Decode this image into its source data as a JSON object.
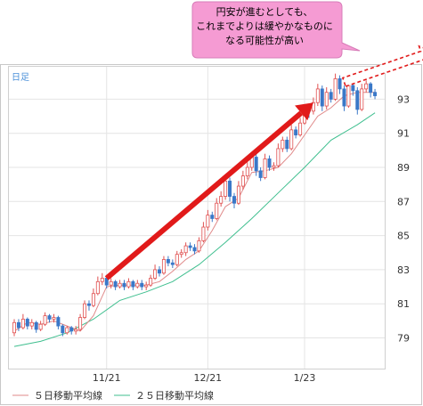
{
  "chart_data": {
    "type": "candlestick",
    "period_label": "日足",
    "x_tick_labels": [
      "11/21",
      "12/21",
      "1/23"
    ],
    "y_tick_labels": [
      "93",
      "91",
      "89",
      "87",
      "85",
      "83",
      "81",
      "79"
    ],
    "ylim": [
      77.2,
      94.9
    ],
    "legend": [
      {
        "name": "５日移動平均線",
        "color": "#e08a8a"
      },
      {
        "name": "２５日移動平均線",
        "color": "#3fbf8f"
      }
    ],
    "annotation": {
      "lines": [
        "円安が進むとしても、",
        "これまでよりは緩やかなものに",
        "なる可能性が高い"
      ],
      "background": "#f59bd3"
    },
    "trend_arrow": {
      "color": "#e11a1a",
      "from": [
        21,
        82.5
      ],
      "to": [
        68,
        92.8
      ]
    },
    "forecast_arrow": {
      "color": "#e11a1a",
      "from": [
        75,
        94.0
      ],
      "to": [
        93,
        95.8
      ]
    },
    "ma25": [
      [
        0,
        78.5
      ],
      [
        6,
        78.8
      ],
      [
        12,
        79.3
      ],
      [
        18,
        80.1
      ],
      [
        24,
        81.2
      ],
      [
        30,
        81.7
      ],
      [
        36,
        82.3
      ],
      [
        42,
        83.3
      ],
      [
        48,
        84.6
      ],
      [
        54,
        86.0
      ],
      [
        60,
        87.5
      ],
      [
        66,
        89.0
      ],
      [
        72,
        90.6
      ],
      [
        78,
        91.5
      ],
      [
        82,
        92.2
      ]
    ],
    "ma5": [
      [
        0,
        79.4
      ],
      [
        3,
        79.9
      ],
      [
        6,
        79.8
      ],
      [
        9,
        80.0
      ],
      [
        12,
        79.7
      ],
      [
        15,
        79.4
      ],
      [
        18,
        80.3
      ],
      [
        21,
        82.0
      ],
      [
        24,
        82.1
      ],
      [
        27,
        82.1
      ],
      [
        30,
        82.1
      ],
      [
        33,
        82.3
      ],
      [
        36,
        82.9
      ],
      [
        39,
        83.6
      ],
      [
        42,
        84.1
      ],
      [
        45,
        85.3
      ],
      [
        48,
        86.7
      ],
      [
        51,
        87.2
      ],
      [
        54,
        88.7
      ],
      [
        57,
        88.8
      ],
      [
        60,
        89.0
      ],
      [
        63,
        89.8
      ],
      [
        66,
        90.9
      ],
      [
        69,
        92.0
      ],
      [
        72,
        92.5
      ],
      [
        75,
        93.2
      ],
      [
        78,
        93.4
      ],
      [
        81,
        93.4
      ],
      [
        82,
        93.4
      ]
    ],
    "candles": [
      [
        0,
        79.3,
        79.9,
        80.1,
        79.1
      ],
      [
        1,
        79.9,
        79.6,
        80.1,
        79.4
      ],
      [
        2,
        79.6,
        80.1,
        80.4,
        79.5
      ],
      [
        3,
        80.1,
        79.7,
        80.2,
        79.5
      ],
      [
        4,
        79.7,
        79.9,
        80.1,
        79.5
      ],
      [
        5,
        79.9,
        79.5,
        80.0,
        79.3
      ],
      [
        6,
        79.5,
        79.8,
        80.0,
        79.4
      ],
      [
        7,
        79.8,
        80.3,
        80.5,
        79.7
      ],
      [
        8,
        80.3,
        80.1,
        80.4,
        79.9
      ],
      [
        9,
        80.1,
        80.2,
        80.4,
        79.9
      ],
      [
        10,
        80.2,
        79.7,
        80.3,
        79.5
      ],
      [
        11,
        79.7,
        79.3,
        79.8,
        79.1
      ],
      [
        12,
        79.3,
        79.6,
        79.7,
        79.2
      ],
      [
        13,
        79.6,
        79.4,
        79.7,
        79.2
      ],
      [
        14,
        79.4,
        79.5,
        79.7,
        79.2
      ],
      [
        15,
        79.5,
        80.2,
        80.4,
        79.4
      ],
      [
        16,
        80.2,
        81.0,
        81.2,
        80.1
      ],
      [
        17,
        81.0,
        80.9,
        81.2,
        80.6
      ],
      [
        18,
        80.9,
        81.6,
        81.9,
        80.8
      ],
      [
        19,
        81.6,
        82.3,
        82.6,
        81.5
      ],
      [
        20,
        82.3,
        82.5,
        82.8,
        82.1
      ],
      [
        21,
        82.5,
        82.1,
        82.7,
        81.9
      ],
      [
        22,
        82.1,
        82.3,
        82.5,
        81.9
      ],
      [
        23,
        82.3,
        82.0,
        82.4,
        81.8
      ],
      [
        24,
        82.0,
        82.2,
        82.4,
        81.9
      ],
      [
        25,
        82.2,
        82.0,
        82.4,
        81.8
      ],
      [
        26,
        82.0,
        82.3,
        82.5,
        81.9
      ],
      [
        27,
        82.3,
        82.0,
        82.4,
        81.8
      ],
      [
        28,
        82.0,
        82.2,
        82.4,
        81.9
      ],
      [
        29,
        82.2,
        82.0,
        82.4,
        81.8
      ],
      [
        30,
        82.0,
        82.1,
        82.3,
        81.8
      ],
      [
        31,
        82.1,
        82.5,
        82.7,
        82.0
      ],
      [
        32,
        82.5,
        83.0,
        83.3,
        82.4
      ],
      [
        33,
        83.0,
        82.8,
        83.2,
        82.6
      ],
      [
        34,
        82.8,
        83.6,
        83.8,
        82.7
      ],
      [
        35,
        83.6,
        83.4,
        83.8,
        83.2
      ],
      [
        36,
        83.4,
        83.3,
        83.6,
        83.1
      ],
      [
        37,
        83.3,
        83.9,
        84.1,
        83.2
      ],
      [
        38,
        83.9,
        84.0,
        84.2,
        83.7
      ],
      [
        39,
        84.0,
        84.4,
        84.6,
        83.8
      ],
      [
        40,
        84.4,
        84.3,
        84.6,
        84.1
      ],
      [
        41,
        84.3,
        84.1,
        84.5,
        83.9
      ],
      [
        42,
        84.1,
        84.7,
        84.9,
        84.0
      ],
      [
        43,
        84.7,
        85.5,
        85.8,
        84.6
      ],
      [
        44,
        85.5,
        86.2,
        86.5,
        85.3
      ],
      [
        45,
        86.2,
        86.0,
        86.4,
        85.8
      ],
      [
        46,
        86.0,
        86.9,
        87.2,
        85.9
      ],
      [
        47,
        86.9,
        87.3,
        87.6,
        86.7
      ],
      [
        48,
        87.3,
        88.2,
        88.5,
        87.1
      ],
      [
        49,
        88.2,
        87.3,
        88.4,
        87.0
      ],
      [
        50,
        87.3,
        86.9,
        87.5,
        86.6
      ],
      [
        51,
        86.9,
        87.9,
        88.2,
        86.8
      ],
      [
        52,
        87.9,
        88.5,
        88.8,
        87.7
      ],
      [
        53,
        88.5,
        89.0,
        89.3,
        88.3
      ],
      [
        54,
        89.0,
        89.6,
        89.9,
        88.8
      ],
      [
        55,
        89.6,
        88.8,
        89.8,
        88.5
      ],
      [
        56,
        88.8,
        88.4,
        89.0,
        88.2
      ],
      [
        57,
        88.4,
        89.5,
        89.8,
        88.3
      ],
      [
        58,
        89.5,
        89.0,
        89.7,
        88.8
      ],
      [
        59,
        89.0,
        89.1,
        89.3,
        88.8
      ],
      [
        60,
        89.1,
        90.1,
        90.4,
        89.0
      ],
      [
        61,
        90.1,
        90.6,
        90.8,
        89.9
      ],
      [
        62,
        90.6,
        90.1,
        90.8,
        89.9
      ],
      [
        63,
        90.1,
        91.2,
        91.5,
        90.0
      ],
      [
        64,
        91.2,
        90.9,
        91.4,
        90.7
      ],
      [
        65,
        90.9,
        91.6,
        91.9,
        90.8
      ],
      [
        66,
        91.6,
        92.4,
        92.7,
        91.5
      ],
      [
        67,
        92.4,
        92.3,
        92.6,
        91.9
      ],
      [
        68,
        92.3,
        92.8,
        93.1,
        92.1
      ],
      [
        69,
        92.8,
        93.6,
        93.9,
        92.6
      ],
      [
        70,
        93.6,
        92.6,
        93.8,
        92.3
      ],
      [
        71,
        92.6,
        93.4,
        93.7,
        92.4
      ],
      [
        72,
        93.4,
        93.0,
        93.6,
        92.8
      ],
      [
        73,
        93.0,
        94.2,
        94.5,
        92.9
      ],
      [
        74,
        94.2,
        93.6,
        94.4,
        93.3
      ],
      [
        75,
        93.6,
        92.6,
        93.8,
        92.3
      ],
      [
        76,
        92.6,
        93.8,
        94.0,
        92.5
      ],
      [
        77,
        93.8,
        93.5,
        94.0,
        93.2
      ],
      [
        78,
        93.5,
        92.4,
        93.7,
        92.1
      ],
      [
        79,
        92.4,
        93.6,
        93.9,
        92.3
      ],
      [
        80,
        93.6,
        93.9,
        94.1,
        93.4
      ],
      [
        81,
        93.9,
        93.4,
        94.0,
        93.1
      ],
      [
        82,
        93.4,
        93.2,
        93.6,
        93.0
      ]
    ]
  }
}
